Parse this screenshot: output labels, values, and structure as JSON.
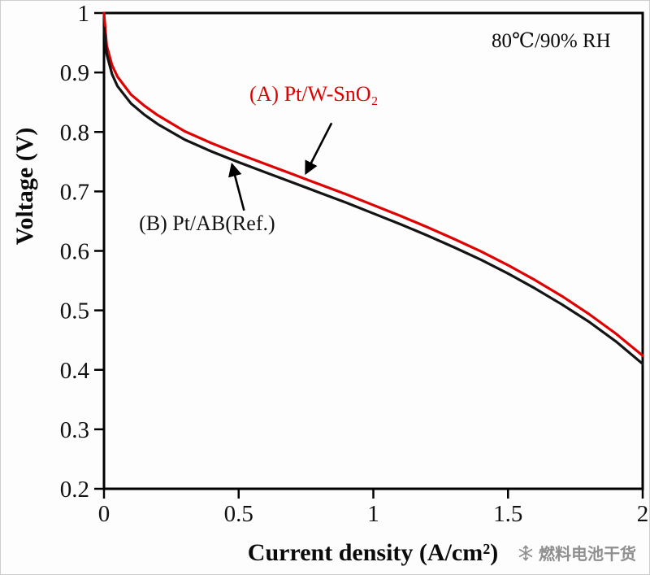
{
  "chart_data": {
    "type": "line",
    "title": "",
    "xlabel": "Current density (A/cm²)",
    "ylabel": "Voltage (V)",
    "xlim": [
      0,
      2
    ],
    "ylim": [
      0.2,
      1
    ],
    "xticks": [
      0,
      0.5,
      1,
      1.5,
      2
    ],
    "yticks": [
      0.2,
      0.3,
      0.4,
      0.5,
      0.6,
      0.7,
      0.8,
      0.9,
      1
    ],
    "grid": false,
    "legend_position": "inline-annotations",
    "condition_label": "80℃/90% RH",
    "series": [
      {
        "name": "(A) Pt/W-SnO₂",
        "color": "#e00000",
        "x": [
          0,
          0.01,
          0.03,
          0.05,
          0.1,
          0.15,
          0.2,
          0.3,
          0.4,
          0.5,
          0.6,
          0.7,
          0.8,
          0.9,
          1.0,
          1.1,
          1.2,
          1.3,
          1.4,
          1.5,
          1.6,
          1.7,
          1.8,
          1.9,
          2.0
        ],
        "y": [
          1.0,
          0.945,
          0.912,
          0.893,
          0.863,
          0.844,
          0.828,
          0.801,
          0.781,
          0.763,
          0.746,
          0.729,
          0.712,
          0.695,
          0.677,
          0.659,
          0.64,
          0.62,
          0.599,
          0.576,
          0.551,
          0.524,
          0.494,
          0.461,
          0.424
        ]
      },
      {
        "name": "(B) Pt/AB(Ref.)",
        "color": "#141414",
        "x": [
          0,
          0.01,
          0.03,
          0.05,
          0.1,
          0.15,
          0.2,
          0.3,
          0.4,
          0.5,
          0.6,
          0.7,
          0.8,
          0.9,
          1.0,
          1.1,
          1.2,
          1.3,
          1.4,
          1.5,
          1.6,
          1.7,
          1.8,
          1.9,
          2.0
        ],
        "y": [
          0.975,
          0.931,
          0.897,
          0.877,
          0.848,
          0.829,
          0.813,
          0.787,
          0.767,
          0.749,
          0.732,
          0.715,
          0.698,
          0.681,
          0.663,
          0.645,
          0.626,
          0.606,
          0.585,
          0.562,
          0.537,
          0.51,
          0.481,
          0.448,
          0.41
        ]
      }
    ],
    "annotations": [
      {
        "text": "(A) Pt/W-SnO₂",
        "color": "#e00000",
        "label_anchor": {
          "x": 0.54,
          "y": 0.852
        },
        "arrow": {
          "from": {
            "x": 0.845,
            "y": 0.815
          },
          "to_series": 0,
          "to_x": 0.74
        }
      },
      {
        "text": "(B) Pt/AB(Ref.)",
        "color": "#141414",
        "label_anchor": {
          "x": 0.13,
          "y": 0.635
        },
        "arrow": {
          "from": {
            "x": 0.52,
            "y": 0.668
          },
          "to_series": 1,
          "to_x": 0.47
        }
      }
    ]
  },
  "watermark": {
    "icon": "snowflake-icon",
    "text": "燃料电池干货",
    "color": "#8f8f8f"
  }
}
